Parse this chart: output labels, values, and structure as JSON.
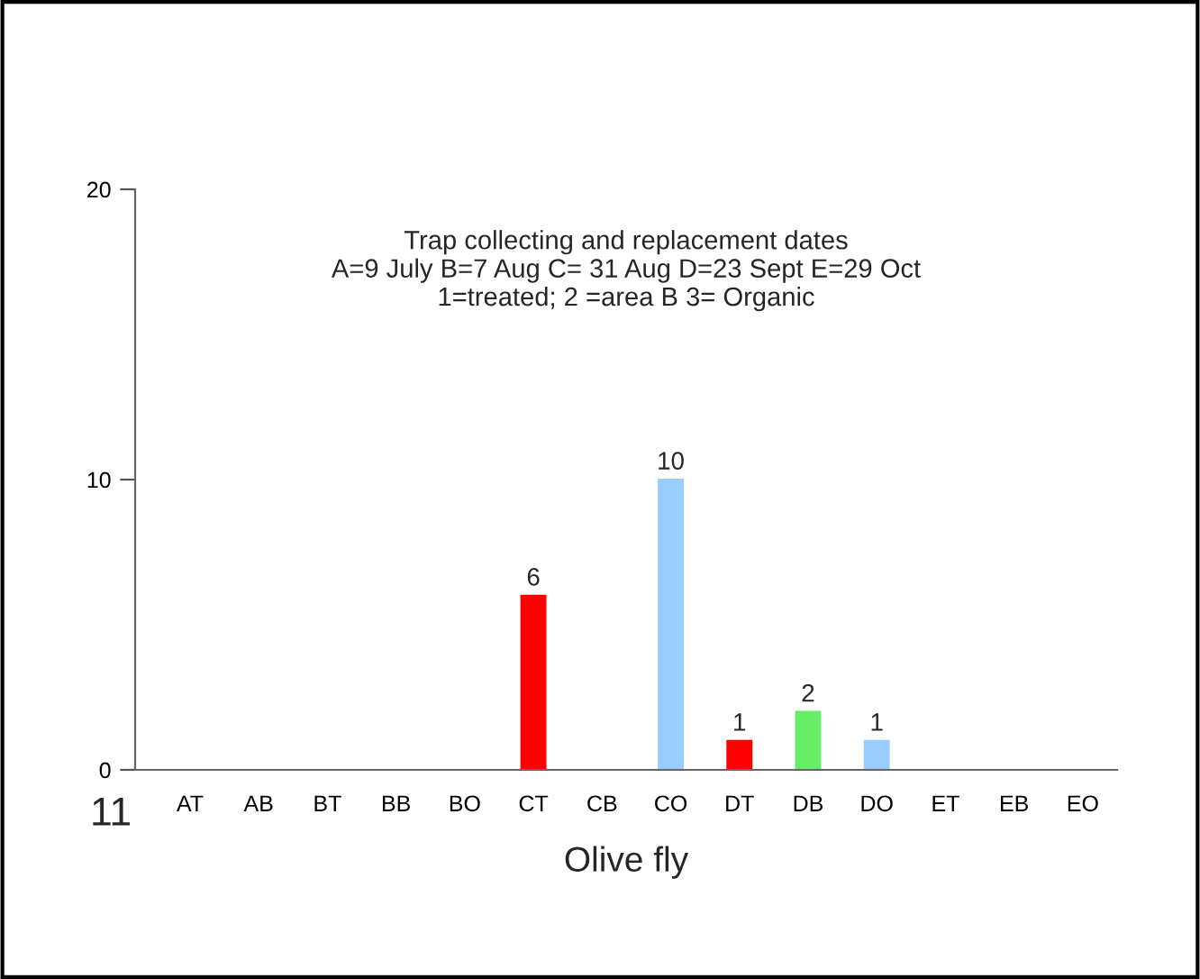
{
  "chart_data": {
    "type": "bar",
    "categories": [
      "AT",
      "AB",
      "BT",
      "BB",
      "BO",
      "CT",
      "CB",
      "CO",
      "DT",
      "DB",
      "DO",
      "ET",
      "EB",
      "EO"
    ],
    "values": [
      0,
      0,
      0,
      0,
      0,
      6,
      0,
      10,
      1,
      2,
      1,
      0,
      0,
      0
    ],
    "colors": [
      "#ff0000",
      "#66ee66",
      "#ff0000",
      "#66ee66",
      "#99ccff",
      "#ff0000",
      "#66ee66",
      "#99ccff",
      "#ff0000",
      "#66ee66",
      "#99ccff",
      "#ff0000",
      "#66ee66",
      "#99ccff"
    ],
    "value_labels": [
      null,
      null,
      null,
      null,
      null,
      "6",
      null,
      "10",
      "1",
      "2",
      "1",
      null,
      null,
      null
    ],
    "ylim": [
      0,
      20
    ],
    "yticks": [
      0,
      10,
      20
    ],
    "grid": false,
    "legend": false,
    "xlabel": "Olive fly",
    "annotations": [
      "Trap collecting and replacement dates\nA=9 July B=7 Aug C= 31 Aug D=23 Sept E=29 Oct\n1=treated; 2 =area B 3= Organic",
      "11"
    ]
  }
}
